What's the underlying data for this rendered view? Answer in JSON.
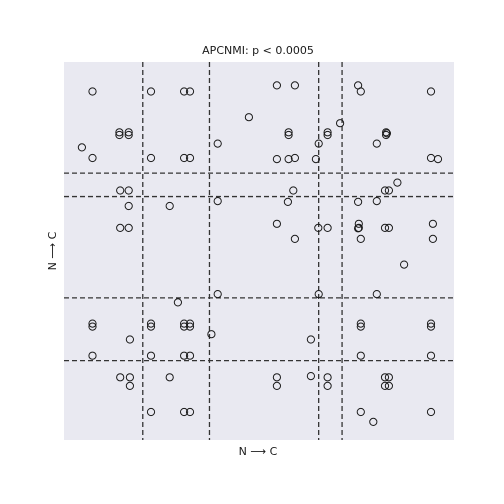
{
  "chart_data": {
    "type": "scatter",
    "title": "APCNMI: p < 0.0005",
    "xlabel": "N ⟶ C",
    "ylabel": "N ⟶ C",
    "xlim": [
      0,
      100
    ],
    "ylim": [
      0,
      100
    ],
    "grid": false,
    "legend": "none",
    "marker": "open-circle",
    "x_cuts": [
      20.2,
      37.3,
      65.3,
      71.3
    ],
    "y_cuts": [
      21.0,
      37.6,
      64.4,
      70.6
    ],
    "points": [
      {
        "x": 7.3,
        "y": 92.2
      },
      {
        "x": 22.3,
        "y": 92.2
      },
      {
        "x": 30.8,
        "y": 92.2
      },
      {
        "x": 32.3,
        "y": 92.2
      },
      {
        "x": 54.6,
        "y": 93.8
      },
      {
        "x": 59.2,
        "y": 93.8
      },
      {
        "x": 75.4,
        "y": 93.8
      },
      {
        "x": 76.1,
        "y": 92.2
      },
      {
        "x": 94.1,
        "y": 92.2
      },
      {
        "x": 47.4,
        "y": 85.4
      },
      {
        "x": 70.8,
        "y": 83.8
      },
      {
        "x": 14.2,
        "y": 81.4
      },
      {
        "x": 14.2,
        "y": 80.7
      },
      {
        "x": 16.6,
        "y": 81.4
      },
      {
        "x": 16.6,
        "y": 80.7
      },
      {
        "x": 57.6,
        "y": 81.4
      },
      {
        "x": 57.6,
        "y": 80.7
      },
      {
        "x": 67.6,
        "y": 81.4
      },
      {
        "x": 67.6,
        "y": 80.7
      },
      {
        "x": 82.6,
        "y": 81.4
      },
      {
        "x": 82.6,
        "y": 80.7
      },
      {
        "x": 82.8,
        "y": 81.1
      },
      {
        "x": 4.6,
        "y": 77.4
      },
      {
        "x": 39.4,
        "y": 78.4
      },
      {
        "x": 65.3,
        "y": 78.4
      },
      {
        "x": 80.2,
        "y": 78.4
      },
      {
        "x": 7.3,
        "y": 74.6
      },
      {
        "x": 22.3,
        "y": 74.6
      },
      {
        "x": 30.8,
        "y": 74.6
      },
      {
        "x": 32.3,
        "y": 74.6
      },
      {
        "x": 54.6,
        "y": 74.3
      },
      {
        "x": 57.6,
        "y": 74.3
      },
      {
        "x": 59.2,
        "y": 74.6
      },
      {
        "x": 64.6,
        "y": 74.3
      },
      {
        "x": 94.1,
        "y": 74.6
      },
      {
        "x": 95.9,
        "y": 74.3
      },
      {
        "x": 85.5,
        "y": 68.1
      },
      {
        "x": 14.4,
        "y": 66.0
      },
      {
        "x": 16.6,
        "y": 66.0
      },
      {
        "x": 58.8,
        "y": 66.0
      },
      {
        "x": 82.3,
        "y": 66.0
      },
      {
        "x": 83.3,
        "y": 66.0
      },
      {
        "x": 39.4,
        "y": 63.2
      },
      {
        "x": 57.4,
        "y": 63.0
      },
      {
        "x": 75.4,
        "y": 63.0
      },
      {
        "x": 80.2,
        "y": 63.2
      },
      {
        "x": 16.6,
        "y": 61.9
      },
      {
        "x": 27.1,
        "y": 61.9
      },
      {
        "x": 54.6,
        "y": 57.2
      },
      {
        "x": 75.6,
        "y": 57.2
      },
      {
        "x": 94.6,
        "y": 57.2
      },
      {
        "x": 14.4,
        "y": 56.1
      },
      {
        "x": 16.6,
        "y": 56.1
      },
      {
        "x": 65.2,
        "y": 56.1
      },
      {
        "x": 67.6,
        "y": 56.1
      },
      {
        "x": 75.6,
        "y": 56.1
      },
      {
        "x": 82.3,
        "y": 56.1
      },
      {
        "x": 83.3,
        "y": 56.1
      },
      {
        "x": 75.4,
        "y": 56.0
      },
      {
        "x": 59.2,
        "y": 53.2
      },
      {
        "x": 76.1,
        "y": 53.2
      },
      {
        "x": 94.6,
        "y": 53.2
      },
      {
        "x": 87.2,
        "y": 46.4
      },
      {
        "x": 29.2,
        "y": 36.4
      },
      {
        "x": 39.4,
        "y": 38.6
      },
      {
        "x": 65.3,
        "y": 38.6
      },
      {
        "x": 80.2,
        "y": 38.6
      },
      {
        "x": 7.3,
        "y": 30.8
      },
      {
        "x": 7.3,
        "y": 30.0
      },
      {
        "x": 22.3,
        "y": 30.8
      },
      {
        "x": 22.3,
        "y": 30.0
      },
      {
        "x": 30.8,
        "y": 30.8
      },
      {
        "x": 30.8,
        "y": 30.0
      },
      {
        "x": 32.3,
        "y": 30.8
      },
      {
        "x": 32.3,
        "y": 30.0
      },
      {
        "x": 76.1,
        "y": 30.8
      },
      {
        "x": 76.1,
        "y": 30.0
      },
      {
        "x": 94.1,
        "y": 30.8
      },
      {
        "x": 94.1,
        "y": 30.0
      },
      {
        "x": 37.8,
        "y": 28.0
      },
      {
        "x": 16.9,
        "y": 26.6
      },
      {
        "x": 63.3,
        "y": 26.6
      },
      {
        "x": 7.3,
        "y": 22.3
      },
      {
        "x": 22.3,
        "y": 22.3
      },
      {
        "x": 30.8,
        "y": 22.3
      },
      {
        "x": 32.3,
        "y": 22.3
      },
      {
        "x": 76.1,
        "y": 22.3
      },
      {
        "x": 94.1,
        "y": 22.3
      },
      {
        "x": 14.4,
        "y": 16.6
      },
      {
        "x": 16.9,
        "y": 16.6
      },
      {
        "x": 27.1,
        "y": 16.6
      },
      {
        "x": 54.6,
        "y": 16.6
      },
      {
        "x": 63.3,
        "y": 16.9
      },
      {
        "x": 67.6,
        "y": 16.6
      },
      {
        "x": 82.3,
        "y": 16.6
      },
      {
        "x": 83.3,
        "y": 16.6
      },
      {
        "x": 16.9,
        "y": 14.3
      },
      {
        "x": 54.6,
        "y": 14.3
      },
      {
        "x": 67.6,
        "y": 14.3
      },
      {
        "x": 82.3,
        "y": 14.3
      },
      {
        "x": 83.3,
        "y": 14.3
      },
      {
        "x": 22.3,
        "y": 7.4
      },
      {
        "x": 30.8,
        "y": 7.4
      },
      {
        "x": 32.3,
        "y": 7.4
      },
      {
        "x": 76.1,
        "y": 7.4
      },
      {
        "x": 94.1,
        "y": 7.4
      },
      {
        "x": 79.3,
        "y": 4.8
      }
    ]
  }
}
